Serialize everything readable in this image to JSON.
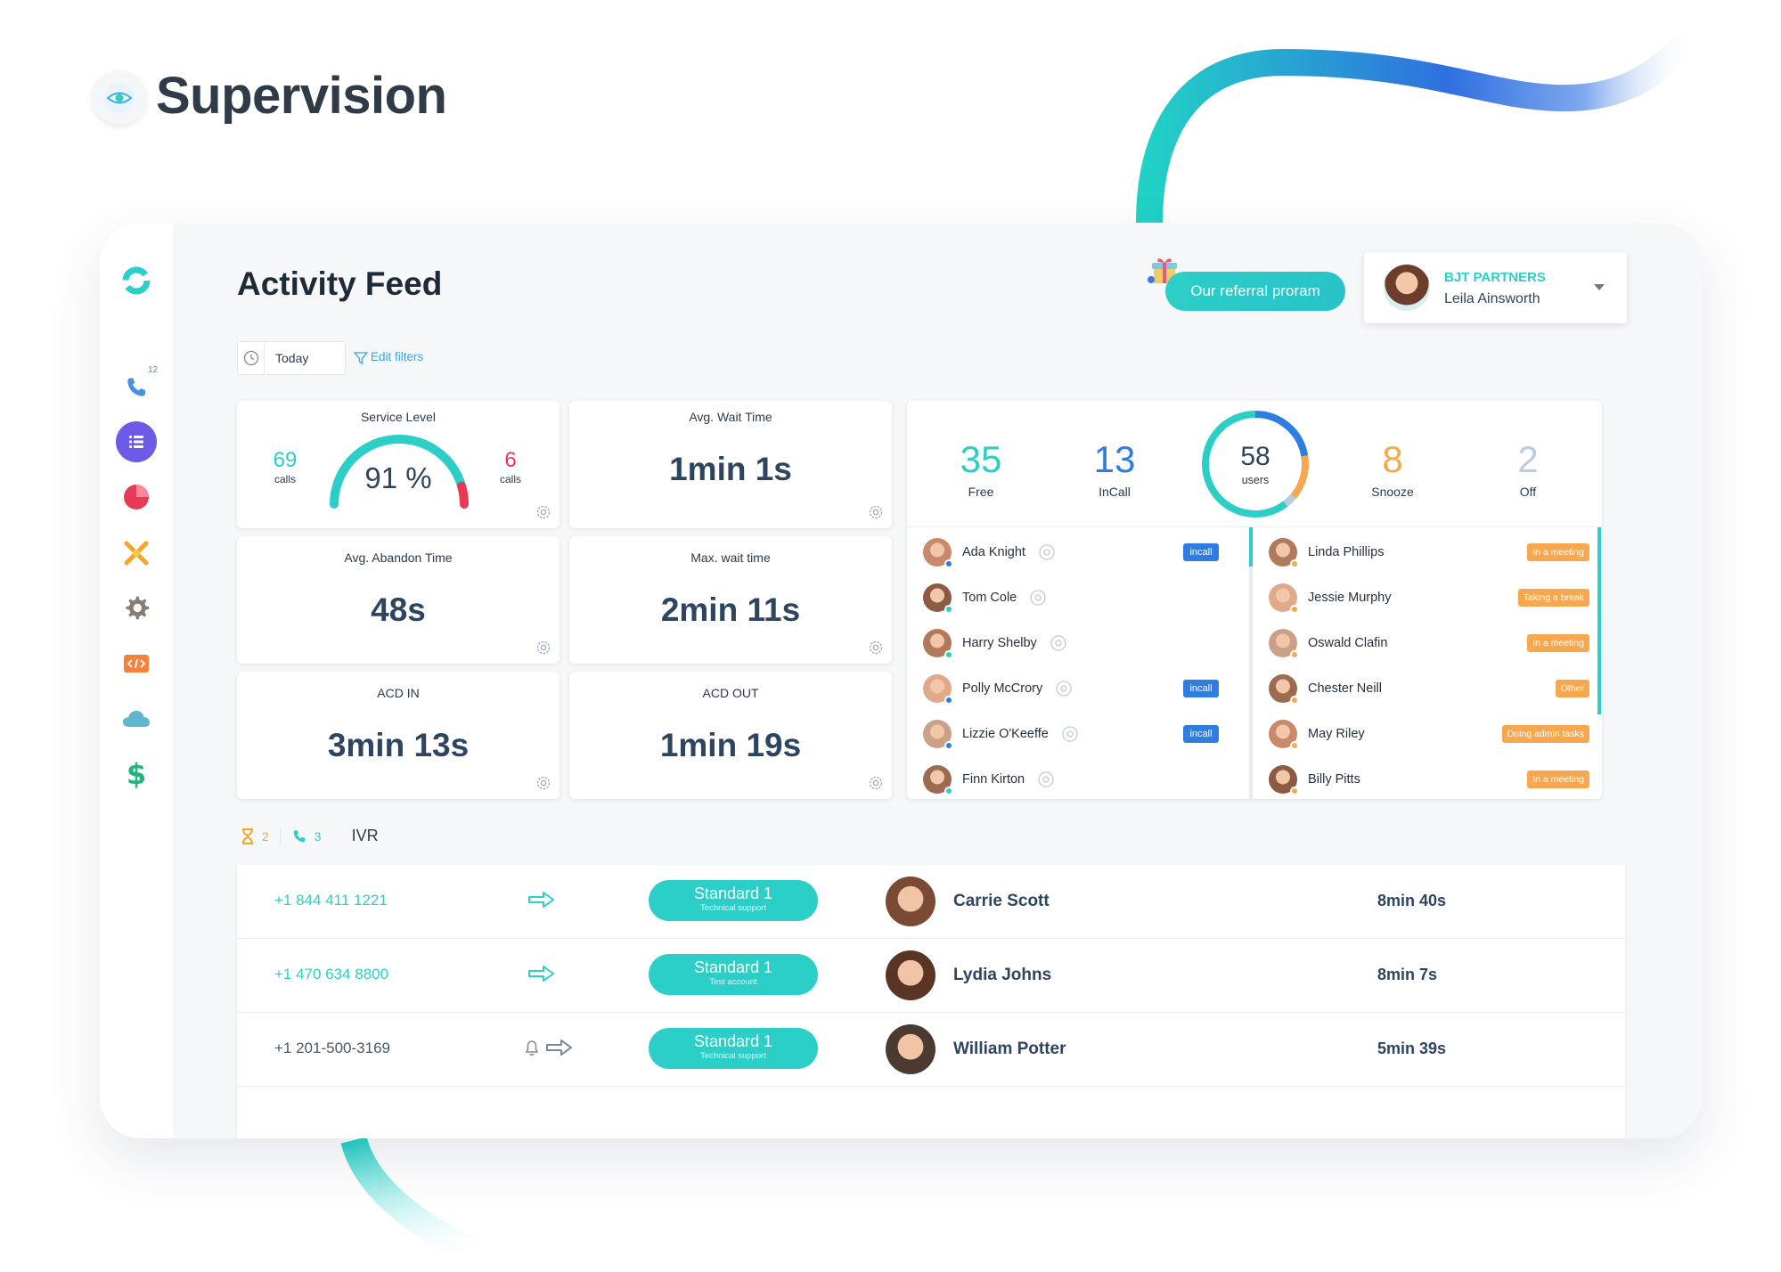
{
  "page": {
    "title": "Supervision"
  },
  "header": {
    "title": "Activity Feed",
    "referral_label": "Our referral proram",
    "account": {
      "company": "BJT PARTNERS",
      "user": "Leila Ainsworth"
    }
  },
  "filters": {
    "date_value": "Today",
    "edit_label": "Edit filters"
  },
  "sidebar": {
    "phone_badge": "12",
    "items": [
      "logo-icon",
      "phone-icon",
      "activity-feed-icon",
      "statistics-icon",
      "integrations-icon",
      "settings-icon",
      "developer-icon",
      "cloud-icon",
      "billing-icon"
    ]
  },
  "stats": {
    "service_level": {
      "label": "Service Level",
      "value": "91 %",
      "left_count": "69",
      "left_unit": "calls",
      "right_count": "6",
      "right_unit": "calls",
      "level": 0.91
    },
    "avg_wait": {
      "label": "Avg. Wait Time",
      "value": "1min 1s"
    },
    "avg_abandon": {
      "label": "Avg. Abandon Time",
      "value": "48s"
    },
    "max_wait": {
      "label": "Max. wait time",
      "value": "2min 11s"
    },
    "acd_in": {
      "label": "ACD IN",
      "value": "3min 13s"
    },
    "acd_out": {
      "label": "ACD OUT",
      "value": "1min 19s"
    }
  },
  "users": {
    "free": {
      "value": "35",
      "label": "Free"
    },
    "incall": {
      "value": "13",
      "label": "InCall"
    },
    "total": {
      "value": "58",
      "label": "users"
    },
    "snooze": {
      "value": "8",
      "label": "Snooze"
    },
    "off": {
      "value": "2",
      "label": "Off"
    },
    "colors": {
      "free": "#2bcfc8",
      "incall": "#2f7de1",
      "snooze": "#f7a84e",
      "off": "#b8cde0"
    }
  },
  "agents_left": [
    {
      "name": "Ada Knight",
      "badge": "incall",
      "dot": "#2f7de1"
    },
    {
      "name": "Tom Cole",
      "badge": "",
      "dot": "#2bcfc8"
    },
    {
      "name": "Harry Shelby",
      "badge": "",
      "dot": "#2bcfc8"
    },
    {
      "name": "Polly McCrory",
      "badge": "incall",
      "dot": "#2f7de1"
    },
    {
      "name": "Lizzie O'Keeffe",
      "badge": "incall",
      "dot": "#2f7de1"
    },
    {
      "name": "Finn Kirton",
      "badge": "",
      "dot": "#2bcfc8"
    }
  ],
  "agents_right": [
    {
      "name": "Linda Phillips",
      "status": "In a meeting"
    },
    {
      "name": "Jessie Murphy",
      "status": "Taking a break"
    },
    {
      "name": "Oswald Clafin",
      "status": "In a meeting"
    },
    {
      "name": "Chester Neill",
      "status": "Other"
    },
    {
      "name": "May Riley",
      "status": "Doing admin tasks"
    },
    {
      "name": "Billy Pitts",
      "status": "In a meeting"
    }
  ],
  "queue": {
    "waiting_count": "2",
    "calls_count": "3",
    "label": "IVR",
    "rows": [
      {
        "phone": "+1 844 411 1221",
        "queue": "Standard 1",
        "sub": "Technical support",
        "name": "Carrie Scott",
        "time": "8min 40s"
      },
      {
        "phone": "+1 470 634 8800",
        "queue": "Standard 1",
        "sub": "Test account",
        "name": "Lydia Johns",
        "time": "8min 7s"
      },
      {
        "phone": "+1 201-500-3169",
        "queue": "Standard 1",
        "sub": "Technical support",
        "name": "William Potter",
        "time": "5min 39s"
      }
    ]
  }
}
